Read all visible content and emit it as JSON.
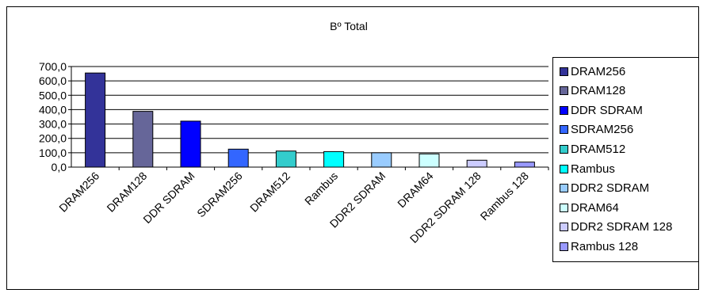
{
  "chart_data": {
    "type": "bar",
    "title": "Bº Total",
    "xlabel": "",
    "ylabel": "",
    "ylim": [
      0,
      700
    ],
    "yticks": [
      "0,0",
      "100,0",
      "200,0",
      "300,0",
      "400,0",
      "500,0",
      "600,0",
      "700,0"
    ],
    "grid": true,
    "legend_position": "right",
    "categories": [
      "DRAM256",
      "DRAM128",
      "DDR SDRAM",
      "SDRAM256",
      "DRAM512",
      "Rambus",
      "DDR2 SDRAM",
      "DRAM64",
      "DDR2 SDRAM 128",
      "Rambus 128"
    ],
    "values": [
      655,
      388,
      320,
      125,
      112,
      108,
      100,
      92,
      48,
      35
    ],
    "colors": [
      "#333399",
      "#666699",
      "#0000FF",
      "#3366FF",
      "#33CCCC",
      "#00FFFF",
      "#99CCFF",
      "#CCFFFF",
      "#CCCCFF",
      "#9999FF"
    ]
  }
}
